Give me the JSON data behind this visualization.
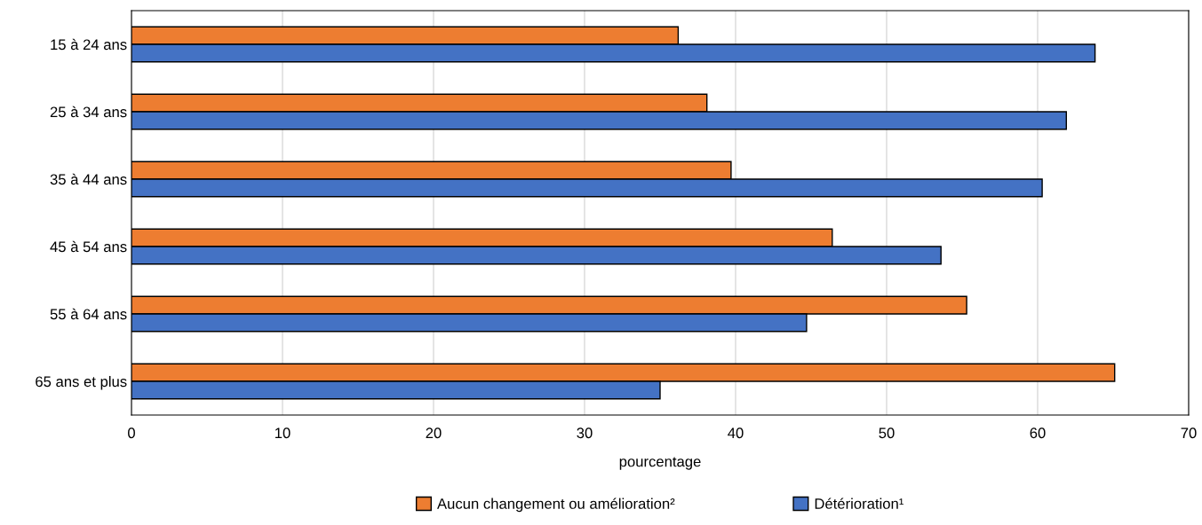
{
  "chart_data": {
    "type": "bar",
    "orientation": "horizontal",
    "categories": [
      "15 à 24 ans",
      "25 à 34 ans",
      "35 à 44 ans",
      "45 à 54 ans",
      "55 à 64 ans",
      "65 ans et plus"
    ],
    "series": [
      {
        "name": "Aucun changement ou amélioration²",
        "color": "#ed7d31",
        "values": [
          36.2,
          38.1,
          39.7,
          46.4,
          55.3,
          65.1
        ]
      },
      {
        "name": "Détérioration¹",
        "color": "#4472c4",
        "values": [
          63.8,
          61.9,
          60.3,
          53.6,
          44.7,
          35.0
        ]
      }
    ],
    "xlabel": "pourcentage",
    "xlim": [
      0,
      70
    ],
    "xticks": [
      0,
      10,
      20,
      30,
      40,
      50,
      60,
      70
    ],
    "grid": "x",
    "legend": "bottom"
  }
}
